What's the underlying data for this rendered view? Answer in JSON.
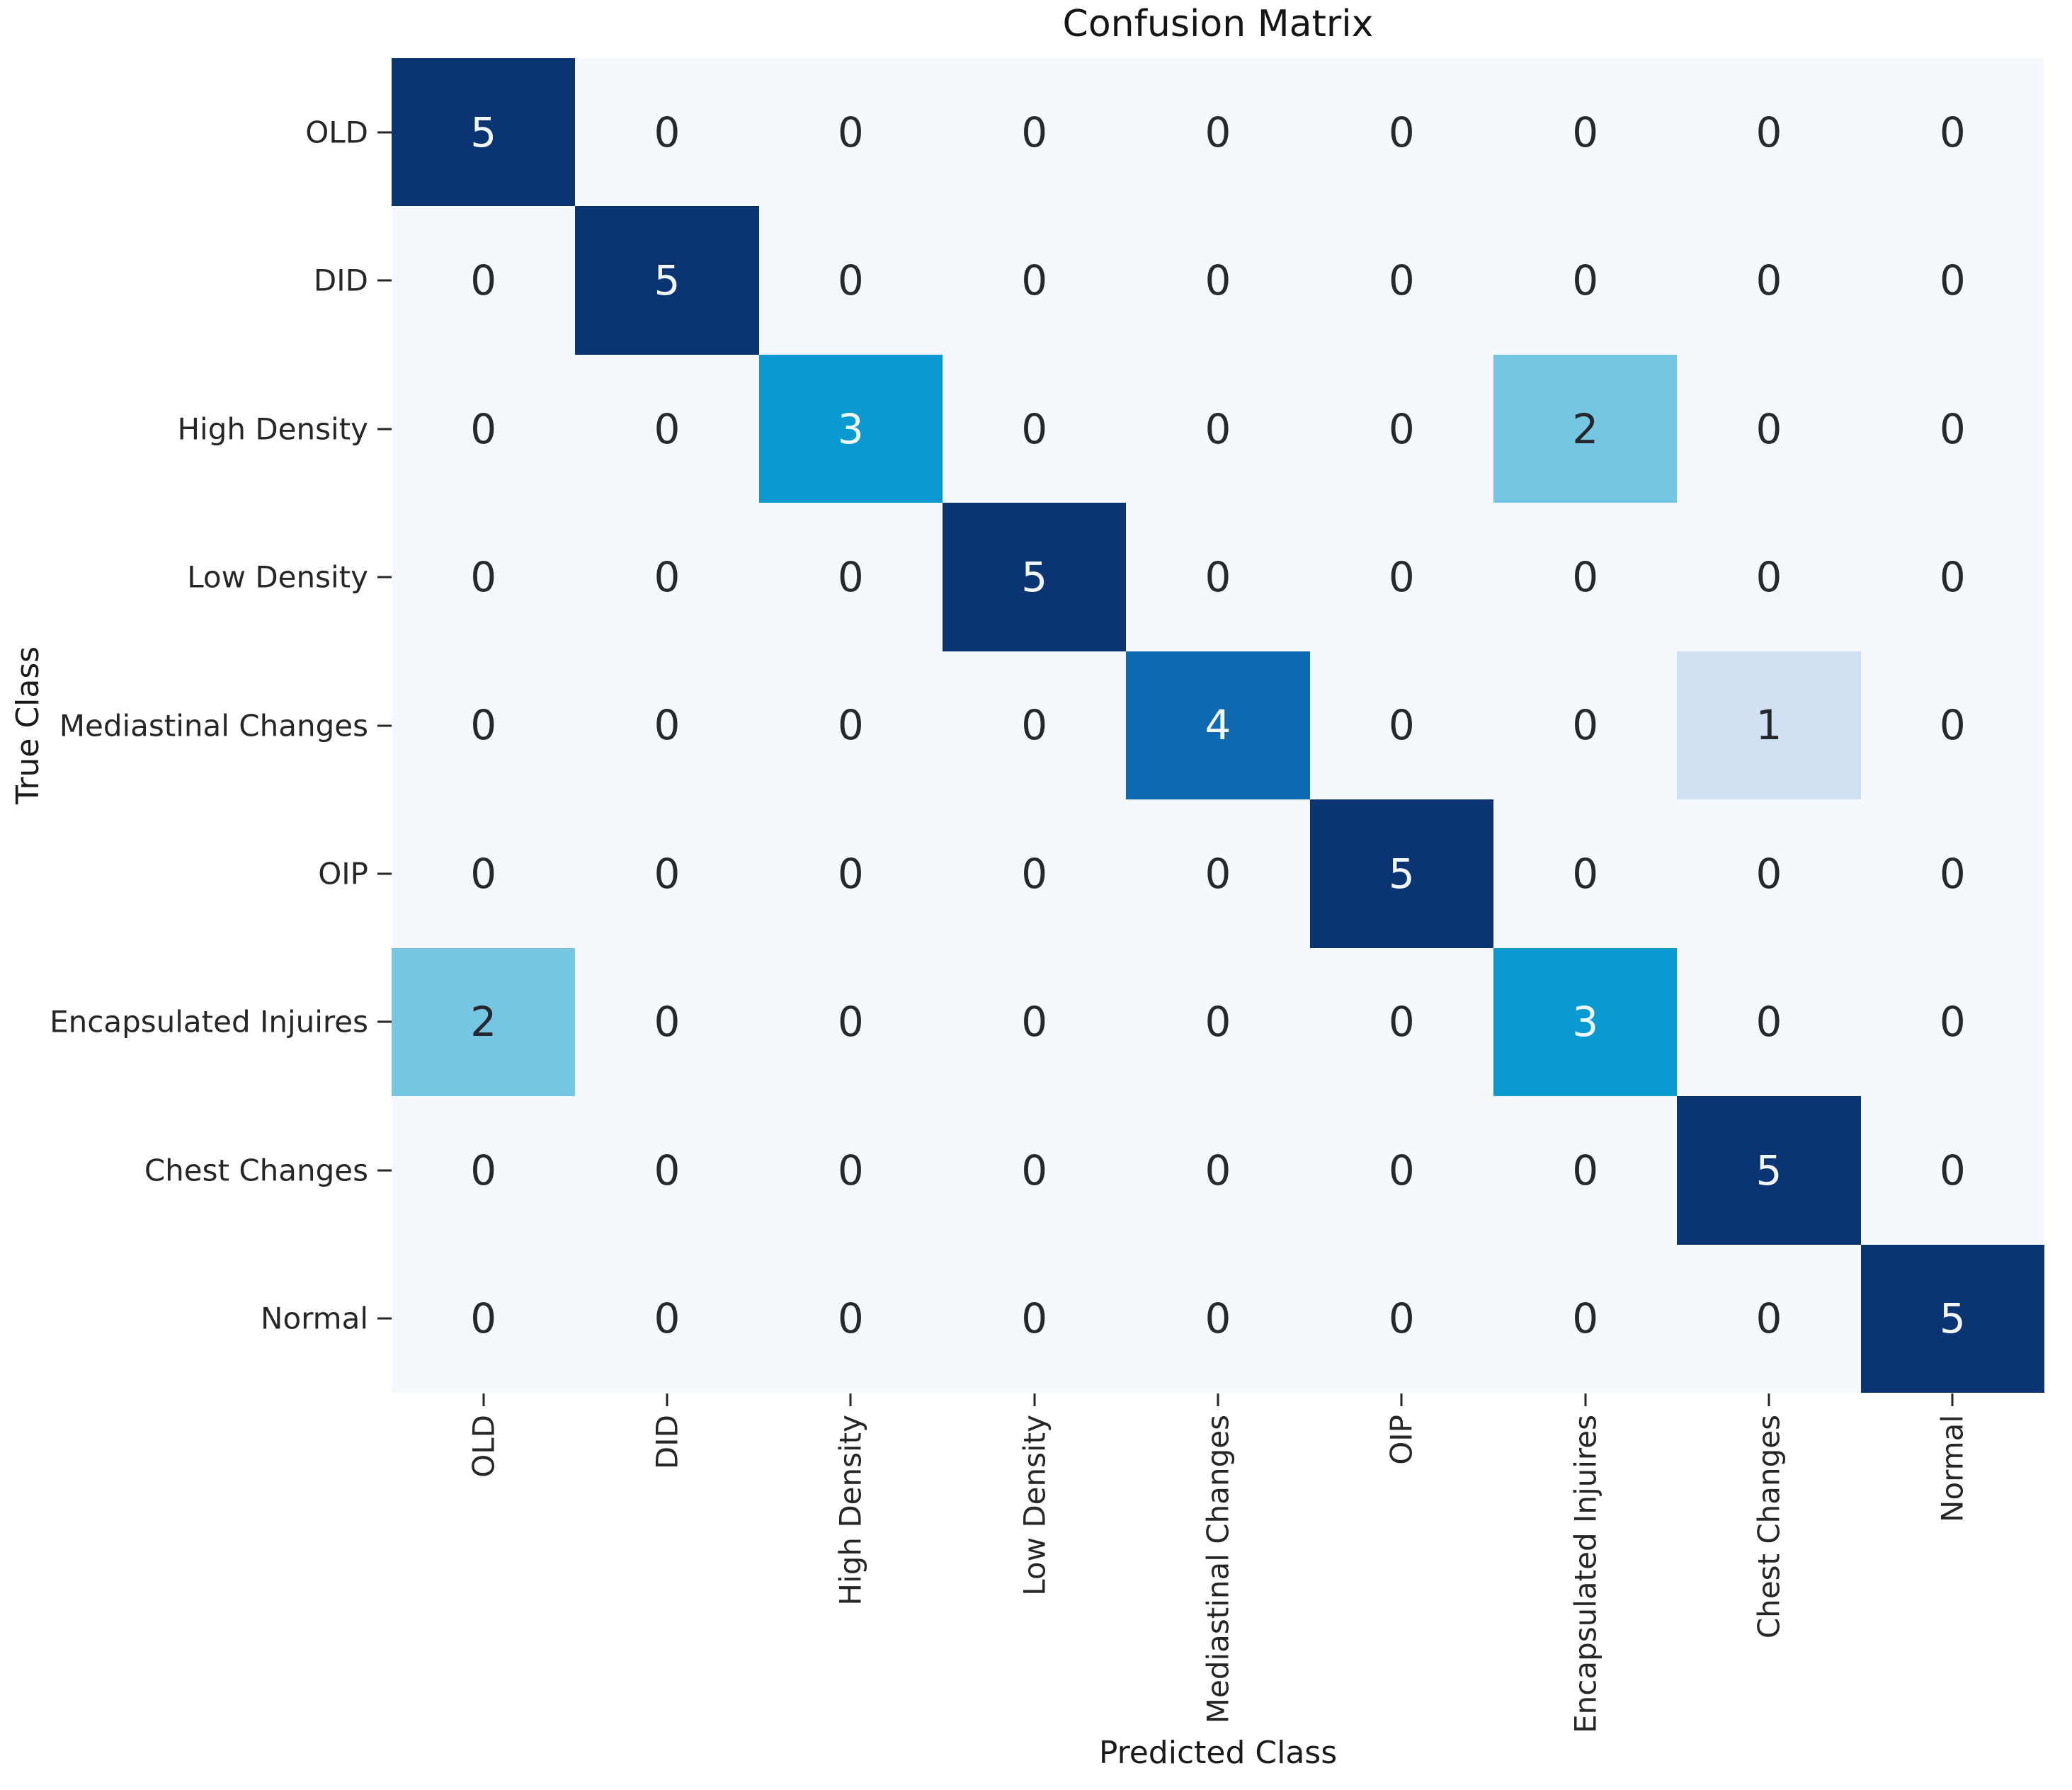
{
  "chart_data": {
    "type": "heatmap",
    "title": "Confusion Matrix",
    "xlabel": "Predicted Class",
    "ylabel": "True Class",
    "x_tick_labels": [
      "OLD",
      "DID",
      "High Density",
      "Low Density",
      "Mediastinal Changes",
      "OIP",
      "Encapsulated Injuires",
      "Chest Changes",
      "Normal"
    ],
    "y_tick_labels": [
      "OLD",
      "DID",
      "High Density",
      "Low Density",
      "Mediastinal Changes",
      "OIP",
      "Encapsulated Injuires",
      "Chest Changes",
      "Normal"
    ],
    "matrix": [
      [
        5,
        0,
        0,
        0,
        0,
        0,
        0,
        0,
        0
      ],
      [
        0,
        5,
        0,
        0,
        0,
        0,
        0,
        0,
        0
      ],
      [
        0,
        0,
        3,
        0,
        0,
        0,
        2,
        0,
        0
      ],
      [
        0,
        0,
        0,
        5,
        0,
        0,
        0,
        0,
        0
      ],
      [
        0,
        0,
        0,
        0,
        4,
        0,
        0,
        1,
        0
      ],
      [
        0,
        0,
        0,
        0,
        0,
        5,
        0,
        0,
        0
      ],
      [
        2,
        0,
        0,
        0,
        0,
        0,
        3,
        0,
        0
      ],
      [
        0,
        0,
        0,
        0,
        0,
        0,
        0,
        5,
        0
      ],
      [
        0,
        0,
        0,
        0,
        0,
        0,
        0,
        0,
        5
      ]
    ],
    "value_range": [
      0,
      5
    ],
    "grid": false,
    "legend": "none",
    "cell_colors_by_value": {
      "0": "#f5f8fc",
      "1": "#cfe1f2",
      "2": "#74c6e2",
      "3": "#089ad0",
      "4": "#0f69b1",
      "5": "#0a3572"
    },
    "light_text_min_value": 3,
    "text_color_light": "#f2f7fc",
    "text_color_dark": "#26282d",
    "axis_text_color": "#262626"
  }
}
